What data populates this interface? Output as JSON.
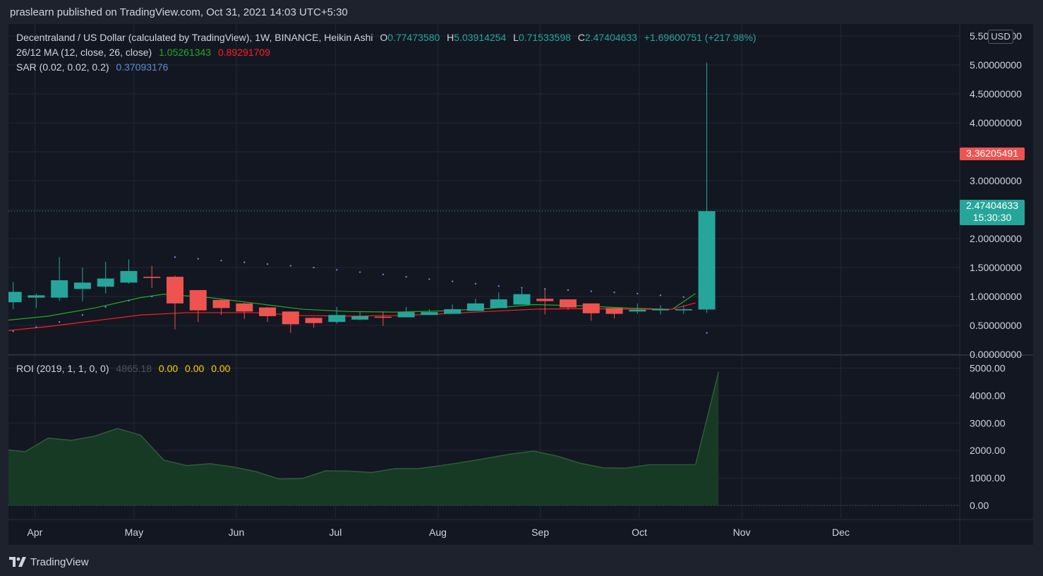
{
  "header": {
    "publisher_line": "praslearn published on TradingView.com, Oct 31, 2021 14:03 UTC+5:30"
  },
  "legend": {
    "main_title": "Decentraland / US Dollar (calculated by TradingView), 1W, BINANCE, Heikin Ashi",
    "ohlc": {
      "o_label": "O",
      "o_value": "0.77473580",
      "h_label": "H",
      "h_value": "5.03914254",
      "l_label": "L",
      "l_value": "0.71533598",
      "c_label": "C",
      "c_value": "2.47404633",
      "change": "+1.69600751 (+217.98%)"
    },
    "ma_label": "26/12 MA (12, close, 26, close)",
    "ma_value_1": "1.05261343",
    "ma_value_2": "0.89291709",
    "sar_label": "SAR (0.02, 0.02, 0.2)",
    "sar_value": "0.37093176",
    "roi_label": "ROI (2019, 1, 1, 0, 0)",
    "roi_value": "4865.18",
    "roi_zero_1": "0.00",
    "roi_zero_2": "0.00",
    "roi_zero_3": "0.00"
  },
  "badges": {
    "currency": "USD",
    "marker_price": "3.36205491",
    "last_price": "2.47404633",
    "countdown": "15:30:30"
  },
  "footer": {
    "brand": "TradingView"
  },
  "colors": {
    "up": "#26a69a",
    "down": "#ef5350",
    "ma_fast": "#22ab22",
    "ma_slow": "#ff1f1f",
    "sar": "#5a8fd6",
    "roi_fill": "#173a24",
    "roi_line": "#2e5c38",
    "grid": "#232734",
    "background": "#131722"
  },
  "chart_data": [
    {
      "type": "candlestick",
      "title": "Decentraland / US Dollar, 1W, Heikin Ashi",
      "ylim": [
        0,
        5.5
      ],
      "y_ticks": [
        "5.50000000",
        "5.00000000",
        "4.50000000",
        "4.00000000",
        "3.50000000",
        "3.00000000",
        "2.50000000",
        "2.00000000",
        "1.50000000",
        "1.00000000",
        "0.50000000",
        "0.00000000"
      ],
      "x_tick_labels": [
        "Apr",
        "May",
        "Jun",
        "Jul",
        "Aug",
        "Sep",
        "Oct",
        "Nov",
        "Dec"
      ],
      "x_tick_dates": [
        "2021-04-01",
        "2021-05-01",
        "2021-06-01",
        "2021-07-01",
        "2021-08-01",
        "2021-09-01",
        "2021-10-01",
        "2021-11-01",
        "2021-12-01"
      ],
      "x_range": [
        "2021-03-24",
        "2022-01-06"
      ],
      "candles": [
        {
          "date": "2021-03-22",
          "o": 0.9,
          "h": 1.25,
          "l": 0.78,
          "c": 1.08
        },
        {
          "date": "2021-03-29",
          "o": 0.98,
          "h": 1.05,
          "l": 0.8,
          "c": 1.02
        },
        {
          "date": "2021-04-05",
          "o": 0.98,
          "h": 1.68,
          "l": 0.92,
          "c": 1.28
        },
        {
          "date": "2021-04-12",
          "o": 1.13,
          "h": 1.5,
          "l": 0.92,
          "c": 1.24
        },
        {
          "date": "2021-04-19",
          "o": 1.17,
          "h": 1.6,
          "l": 1.05,
          "c": 1.31
        },
        {
          "date": "2021-04-26",
          "o": 1.24,
          "h": 1.64,
          "l": 1.22,
          "c": 1.44
        },
        {
          "date": "2021-05-03",
          "o": 1.34,
          "h": 1.53,
          "l": 1.15,
          "c": 1.32
        },
        {
          "date": "2021-05-10",
          "o": 1.34,
          "h": 1.36,
          "l": 0.43,
          "c": 0.88
        },
        {
          "date": "2021-05-17",
          "o": 1.11,
          "h": 1.11,
          "l": 0.56,
          "c": 0.76
        },
        {
          "date": "2021-05-24",
          "o": 0.94,
          "h": 0.95,
          "l": 0.68,
          "c": 0.8
        },
        {
          "date": "2021-05-31",
          "o": 0.88,
          "h": 0.89,
          "l": 0.61,
          "c": 0.74
        },
        {
          "date": "2021-06-07",
          "o": 0.81,
          "h": 0.82,
          "l": 0.56,
          "c": 0.66
        },
        {
          "date": "2021-06-14",
          "o": 0.74,
          "h": 0.74,
          "l": 0.37,
          "c": 0.52
        },
        {
          "date": "2021-06-21",
          "o": 0.63,
          "h": 0.64,
          "l": 0.46,
          "c": 0.54
        },
        {
          "date": "2021-06-28",
          "o": 0.56,
          "h": 0.82,
          "l": 0.53,
          "c": 0.68
        },
        {
          "date": "2021-07-05",
          "o": 0.6,
          "h": 0.74,
          "l": 0.59,
          "c": 0.66
        },
        {
          "date": "2021-07-12",
          "o": 0.65,
          "h": 0.74,
          "l": 0.49,
          "c": 0.64
        },
        {
          "date": "2021-07-19",
          "o": 0.64,
          "h": 0.82,
          "l": 0.64,
          "c": 0.73
        },
        {
          "date": "2021-07-26",
          "o": 0.68,
          "h": 0.78,
          "l": 0.68,
          "c": 0.73
        },
        {
          "date": "2021-08-02",
          "o": 0.7,
          "h": 0.86,
          "l": 0.7,
          "c": 0.78
        },
        {
          "date": "2021-08-09",
          "o": 0.75,
          "h": 0.96,
          "l": 0.75,
          "c": 0.88
        },
        {
          "date": "2021-08-16",
          "o": 0.8,
          "h": 1.07,
          "l": 0.8,
          "c": 0.95
        },
        {
          "date": "2021-08-23",
          "o": 0.86,
          "h": 1.13,
          "l": 0.86,
          "c": 1.04
        },
        {
          "date": "2021-08-30",
          "o": 0.96,
          "h": 1.12,
          "l": 0.69,
          "c": 0.92
        },
        {
          "date": "2021-09-06",
          "o": 0.95,
          "h": 0.95,
          "l": 0.77,
          "c": 0.81
        },
        {
          "date": "2021-09-13",
          "o": 0.88,
          "h": 0.88,
          "l": 0.58,
          "c": 0.71
        },
        {
          "date": "2021-09-20",
          "o": 0.8,
          "h": 0.8,
          "l": 0.62,
          "c": 0.7
        },
        {
          "date": "2021-09-27",
          "o": 0.74,
          "h": 0.88,
          "l": 0.7,
          "c": 0.77
        },
        {
          "date": "2021-10-04",
          "o": 0.76,
          "h": 0.85,
          "l": 0.69,
          "c": 0.78
        },
        {
          "date": "2021-10-11",
          "o": 0.76,
          "h": 0.85,
          "l": 0.7,
          "c": 0.78
        },
        {
          "date": "2021-10-18",
          "o": 0.77474,
          "h": 5.03914,
          "l": 0.71534,
          "c": 2.47405
        }
      ],
      "ma_fast": [
        {
          "date": "2021-03-22",
          "y": 0.58
        },
        {
          "date": "2021-04-05",
          "y": 0.66
        },
        {
          "date": "2021-04-19",
          "y": 0.8
        },
        {
          "date": "2021-05-03",
          "y": 0.98
        },
        {
          "date": "2021-05-10",
          "y": 1.04
        },
        {
          "date": "2021-05-24",
          "y": 0.98
        },
        {
          "date": "2021-06-07",
          "y": 0.88
        },
        {
          "date": "2021-06-21",
          "y": 0.78
        },
        {
          "date": "2021-07-05",
          "y": 0.74
        },
        {
          "date": "2021-07-19",
          "y": 0.73
        },
        {
          "date": "2021-08-02",
          "y": 0.75
        },
        {
          "date": "2021-08-16",
          "y": 0.79
        },
        {
          "date": "2021-08-30",
          "y": 0.86
        },
        {
          "date": "2021-09-13",
          "y": 0.84
        },
        {
          "date": "2021-09-27",
          "y": 0.8
        },
        {
          "date": "2021-10-11",
          "y": 0.78
        },
        {
          "date": "2021-10-18",
          "y": 1.05
        }
      ],
      "ma_slow": [
        {
          "date": "2021-03-22",
          "y": 0.4
        },
        {
          "date": "2021-04-05",
          "y": 0.48
        },
        {
          "date": "2021-04-19",
          "y": 0.58
        },
        {
          "date": "2021-05-03",
          "y": 0.68
        },
        {
          "date": "2021-05-17",
          "y": 0.72
        },
        {
          "date": "2021-06-07",
          "y": 0.72
        },
        {
          "date": "2021-06-21",
          "y": 0.67
        },
        {
          "date": "2021-07-05",
          "y": 0.66
        },
        {
          "date": "2021-07-19",
          "y": 0.67
        },
        {
          "date": "2021-08-02",
          "y": 0.7
        },
        {
          "date": "2021-08-16",
          "y": 0.74
        },
        {
          "date": "2021-08-30",
          "y": 0.78
        },
        {
          "date": "2021-09-13",
          "y": 0.79
        },
        {
          "date": "2021-09-27",
          "y": 0.78
        },
        {
          "date": "2021-10-11",
          "y": 0.78
        },
        {
          "date": "2021-10-18",
          "y": 0.89
        }
      ],
      "sar": [
        {
          "date": "2021-03-22",
          "y": 0.4
        },
        {
          "date": "2021-03-29",
          "y": 0.47
        },
        {
          "date": "2021-04-05",
          "y": 0.56
        },
        {
          "date": "2021-04-12",
          "y": 0.68
        },
        {
          "date": "2021-04-19",
          "y": 0.82
        },
        {
          "date": "2021-04-26",
          "y": 0.93
        },
        {
          "date": "2021-05-03",
          "y": 1.0
        },
        {
          "date": "2021-05-10",
          "y": 1.68
        },
        {
          "date": "2021-05-17",
          "y": 1.65
        },
        {
          "date": "2021-05-24",
          "y": 1.62
        },
        {
          "date": "2021-05-31",
          "y": 1.59
        },
        {
          "date": "2021-06-07",
          "y": 1.56
        },
        {
          "date": "2021-06-14",
          "y": 1.53
        },
        {
          "date": "2021-06-21",
          "y": 1.5
        },
        {
          "date": "2021-06-28",
          "y": 1.46
        },
        {
          "date": "2021-07-05",
          "y": 1.42
        },
        {
          "date": "2021-07-12",
          "y": 1.38
        },
        {
          "date": "2021-07-19",
          "y": 1.34
        },
        {
          "date": "2021-07-26",
          "y": 1.3
        },
        {
          "date": "2021-08-02",
          "y": 1.26
        },
        {
          "date": "2021-08-09",
          "y": 1.22
        },
        {
          "date": "2021-08-16",
          "y": 1.18
        },
        {
          "date": "2021-08-23",
          "y": 1.15
        },
        {
          "date": "2021-08-30",
          "y": 1.13
        },
        {
          "date": "2021-09-06",
          "y": 1.11
        },
        {
          "date": "2021-09-13",
          "y": 1.09
        },
        {
          "date": "2021-09-20",
          "y": 1.07
        },
        {
          "date": "2021-09-27",
          "y": 1.05
        },
        {
          "date": "2021-10-04",
          "y": 1.02
        },
        {
          "date": "2021-10-11",
          "y": 0.99
        },
        {
          "date": "2021-10-18",
          "y": 0.37
        }
      ]
    },
    {
      "type": "area",
      "title": "ROI (2019, 1, 1, 0, 0)",
      "ylim": [
        0,
        5000
      ],
      "y_ticks": [
        "5000.00",
        "4000.00",
        "3000.00",
        "2000.00",
        "1000.00",
        "0.00"
      ],
      "points": [
        {
          "date": "2021-03-22",
          "y": 2050
        },
        {
          "date": "2021-03-29",
          "y": 1950
        },
        {
          "date": "2021-04-05",
          "y": 2450
        },
        {
          "date": "2021-04-12",
          "y": 2370
        },
        {
          "date": "2021-04-19",
          "y": 2520
        },
        {
          "date": "2021-04-26",
          "y": 2800
        },
        {
          "date": "2021-05-03",
          "y": 2560
        },
        {
          "date": "2021-05-10",
          "y": 1650
        },
        {
          "date": "2021-05-17",
          "y": 1450
        },
        {
          "date": "2021-05-24",
          "y": 1520
        },
        {
          "date": "2021-05-31",
          "y": 1400
        },
        {
          "date": "2021-06-07",
          "y": 1230
        },
        {
          "date": "2021-06-14",
          "y": 960
        },
        {
          "date": "2021-06-21",
          "y": 980
        },
        {
          "date": "2021-06-28",
          "y": 1260
        },
        {
          "date": "2021-07-05",
          "y": 1250
        },
        {
          "date": "2021-07-12",
          "y": 1200
        },
        {
          "date": "2021-07-19",
          "y": 1340
        },
        {
          "date": "2021-07-26",
          "y": 1340
        },
        {
          "date": "2021-08-02",
          "y": 1450
        },
        {
          "date": "2021-08-09",
          "y": 1580
        },
        {
          "date": "2021-08-16",
          "y": 1720
        },
        {
          "date": "2021-08-23",
          "y": 1870
        },
        {
          "date": "2021-08-30",
          "y": 1980
        },
        {
          "date": "2021-09-06",
          "y": 1800
        },
        {
          "date": "2021-09-13",
          "y": 1540
        },
        {
          "date": "2021-09-20",
          "y": 1370
        },
        {
          "date": "2021-09-27",
          "y": 1360
        },
        {
          "date": "2021-10-04",
          "y": 1480
        },
        {
          "date": "2021-10-11",
          "y": 1480
        },
        {
          "date": "2021-10-18",
          "y": 1480
        },
        {
          "date": "2021-10-25",
          "y": 4865
        }
      ]
    }
  ]
}
